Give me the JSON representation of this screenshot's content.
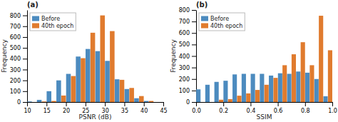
{
  "chart_data": [
    {
      "type": "bar",
      "title": "(a)",
      "x_label": "PSNR (dB)",
      "y_label": "Frequency",
      "x": [
        10,
        12.5,
        15,
        17.5,
        20,
        22.5,
        25,
        27.5,
        30,
        32.5,
        35,
        37.5,
        40
      ],
      "series": [
        {
          "name": "Before",
          "color": "#4C8BBF",
          "values": [
            5,
            20,
            100,
            200,
            260,
            420,
            490,
            470,
            380,
            210,
            120,
            35,
            10
          ]
        },
        {
          "name": "40th epoch",
          "color": "#E07B2E",
          "values": [
            0,
            5,
            10,
            60,
            240,
            405,
            640,
            800,
            655,
            205,
            130,
            55,
            10
          ]
        }
      ],
      "xlim": [
        10,
        45
      ],
      "ylim": [
        0,
        850
      ],
      "xticks": [
        10,
        15,
        20,
        25,
        30,
        35,
        40,
        45
      ],
      "yticks": [
        0,
        100,
        200,
        300,
        400,
        500,
        600,
        700,
        800
      ],
      "grid": false,
      "legend": "upper left"
    },
    {
      "type": "bar",
      "title": "(b)",
      "x_label": "SSIM",
      "y_label": "Frequency",
      "x": [
        0.0,
        0.0667,
        0.1334,
        0.2001,
        0.2668,
        0.3335,
        0.4002,
        0.4669,
        0.5336,
        0.6003,
        0.667,
        0.7337,
        0.8004,
        0.8671,
        0.9338
      ],
      "series": [
        {
          "name": "Before",
          "color": "#4C8BBF",
          "values": [
            110,
            150,
            175,
            185,
            240,
            245,
            245,
            245,
            230,
            250,
            245,
            265,
            255,
            200,
            50
          ]
        },
        {
          "name": "40th epoch",
          "color": "#E07B2E",
          "values": [
            0,
            0,
            20,
            25,
            55,
            75,
            105,
            150,
            210,
            320,
            415,
            520,
            320,
            750,
            450
          ]
        }
      ],
      "xlim": [
        0.0,
        1.0
      ],
      "ylim": [
        0,
        800
      ],
      "xticks": [
        {
          "value": 0.0,
          "label": "0.0"
        },
        0.2,
        0.4,
        0.6,
        0.8,
        {
          "value": 1.0,
          "label": "1.0"
        }
      ],
      "yticks": [
        0,
        100,
        200,
        300,
        400,
        500,
        600,
        700,
        800
      ],
      "grid": false,
      "legend": "upper left"
    }
  ]
}
